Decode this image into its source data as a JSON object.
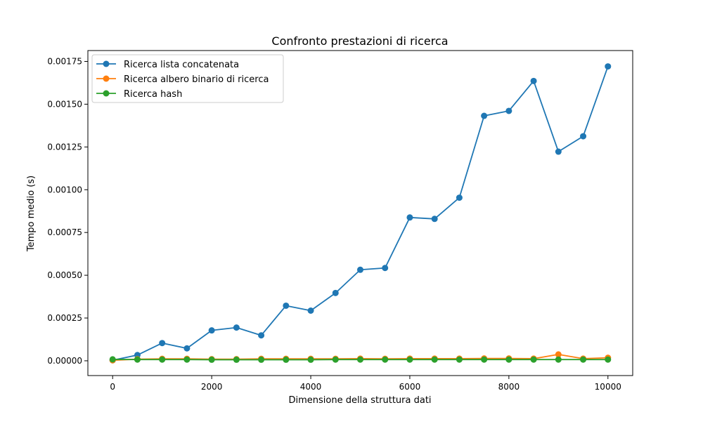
{
  "chart_data": {
    "type": "line",
    "title": "Confronto prestazioni di ricerca",
    "xlabel": "Dimensione della struttura dati",
    "ylabel": "Tempo medio (s)",
    "xlim": [
      -500,
      10500
    ],
    "ylim": [
      -8.64e-05,
      0.0018136
    ],
    "xticks": [
      0,
      2000,
      4000,
      6000,
      8000,
      10000
    ],
    "xtick_labels": [
      "0",
      "2000",
      "4000",
      "6000",
      "8000",
      "10000"
    ],
    "yticks": [
      0,
      0.00025,
      0.0005,
      0.00075,
      0.001,
      0.00125,
      0.0015,
      0.00175
    ],
    "ytick_labels": [
      "0.00000",
      "0.00025",
      "0.00050",
      "0.00075",
      "0.00100",
      "0.00125",
      "0.00150",
      "0.00175"
    ],
    "grid": false,
    "legend_position": "top-left",
    "x": [
      0,
      500,
      1000,
      1500,
      2000,
      2500,
      3000,
      3500,
      4000,
      4500,
      5000,
      5500,
      6000,
      6500,
      7000,
      7500,
      8000,
      8500,
      9000,
      9500,
      10000
    ],
    "series": [
      {
        "name": "Ricerca lista concatenata",
        "color": "#1f77b4",
        "values": [
          3.1e-06,
          3.35e-05,
          0.0001035,
          7.26e-05,
          0.0001777,
          0.0001942,
          0.0001486,
          0.0003221,
          0.0002932,
          0.0003964,
          0.0005322,
          0.0005425,
          0.0008377,
          0.0008295,
          0.0009535,
          0.0014319,
          0.0014608,
          0.0016358,
          0.0012225,
          0.0013126,
          0.0017208
        ]
      },
      {
        "name": "Ricerca albero binario di ricerca",
        "color": "#ff7f0e",
        "values": [
          3.1e-06,
          9.3e-06,
          1.14e-05,
          1.14e-05,
          9.3e-06,
          9.3e-06,
          1.14e-05,
          1.14e-05,
          1.14e-05,
          1.14e-05,
          1.24e-05,
          1.14e-05,
          1.24e-05,
          1.24e-05,
          1.24e-05,
          1.34e-05,
          1.34e-05,
          1.24e-05,
          3.72e-05,
          1.24e-05,
          1.76e-05
        ]
      },
      {
        "name": "Ricerca hash",
        "color": "#2ca02c",
        "values": [
          8.3e-06,
          7.2e-06,
          7.2e-06,
          7.2e-06,
          6.2e-06,
          6.2e-06,
          6.2e-06,
          6.2e-06,
          6.2e-06,
          7.2e-06,
          7.2e-06,
          7.2e-06,
          7.2e-06,
          7.2e-06,
          7.2e-06,
          7.2e-06,
          7.2e-06,
          7.2e-06,
          7.2e-06,
          7.2e-06,
          7.2e-06
        ]
      }
    ]
  }
}
